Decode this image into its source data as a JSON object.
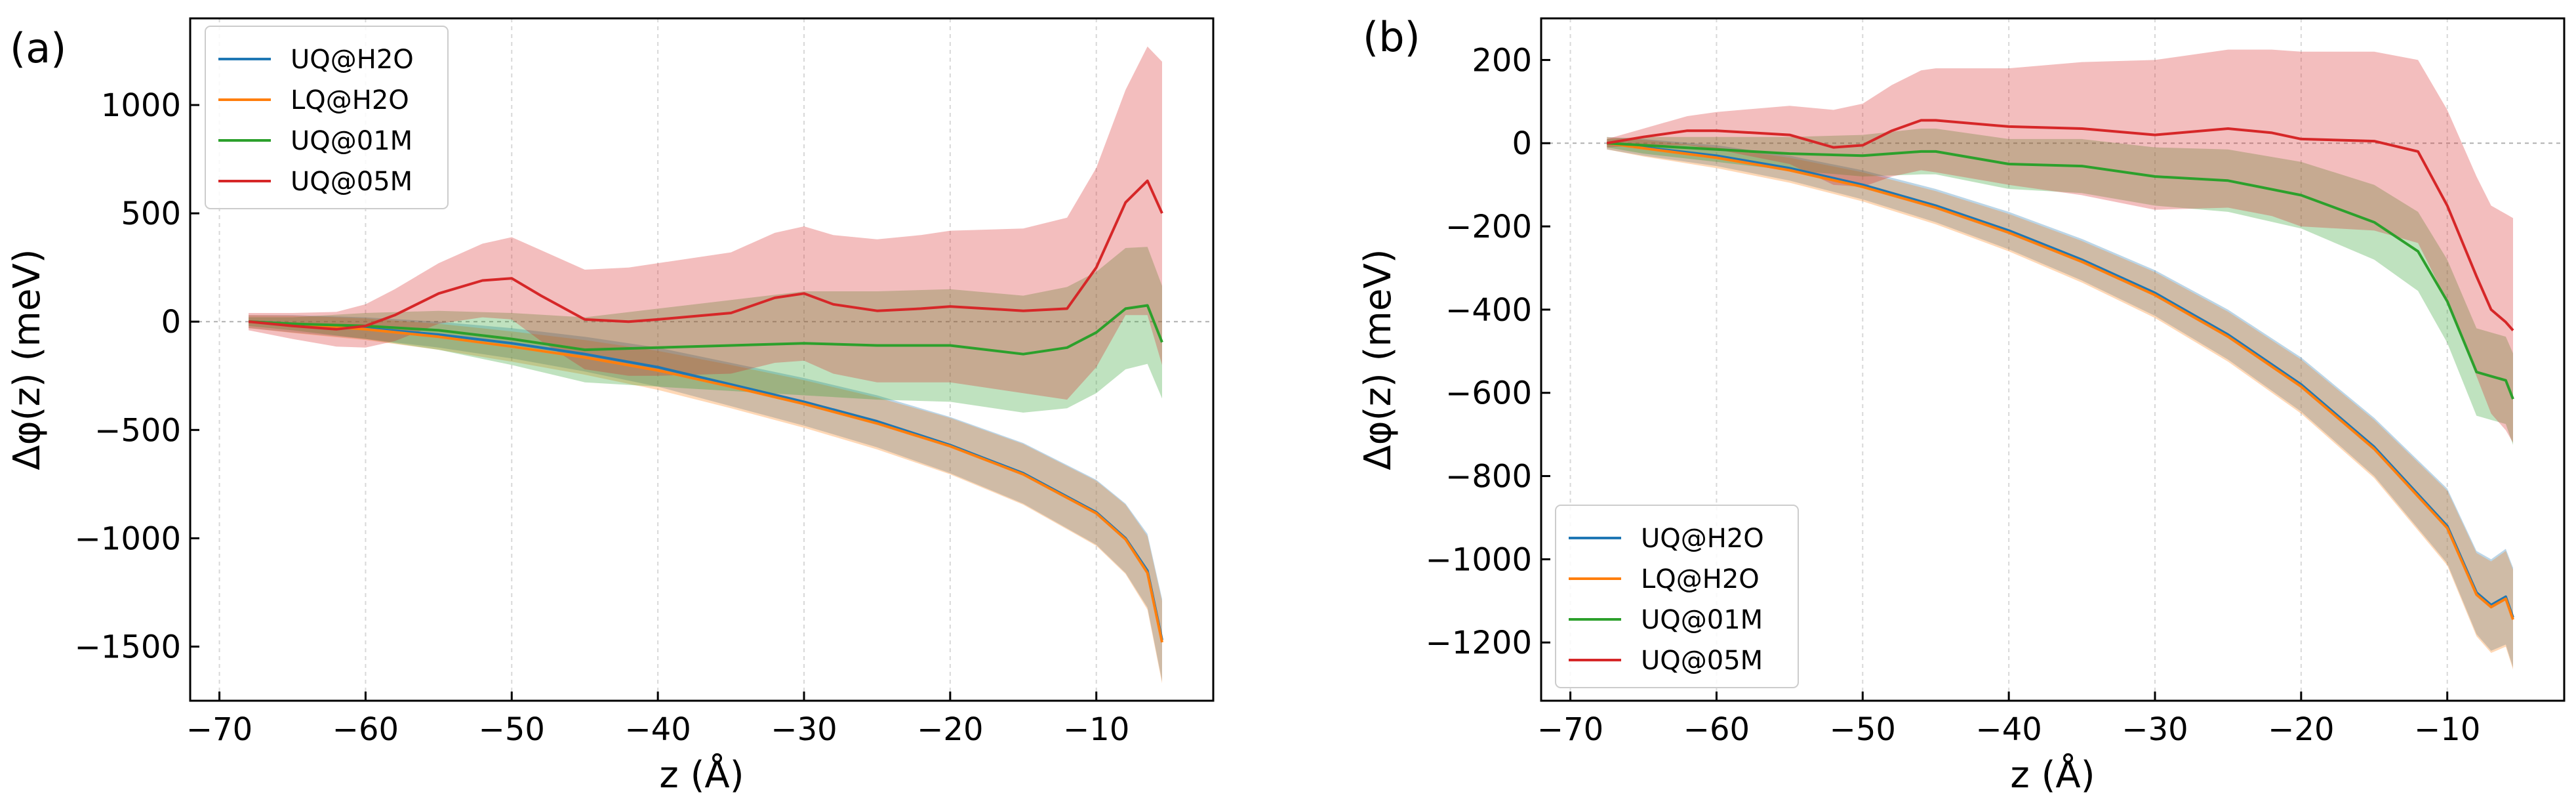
{
  "colors": {
    "UQ@H2O": "#1f77b4",
    "LQ@H2O": "#ff7f0e",
    "UQ@01M": "#2ca02c",
    "UQ@05M": "#d62728",
    "zero_line": "#b0b0b0",
    "grid": "#d8d8d8"
  },
  "chart_data": [
    {
      "type": "line",
      "panel_label": "(a)",
      "xlabel": "z (Å)",
      "ylabel": "Δφ(z) (meV)",
      "xlim": [
        -72,
        -2
      ],
      "ylim": [
        -1750,
        1400
      ],
      "xticks": [
        -70,
        -60,
        -50,
        -40,
        -30,
        -20,
        -10
      ],
      "yticks": [
        -1500,
        -1000,
        -500,
        0,
        500,
        1000
      ],
      "xtick_labels": [
        "−70",
        "−60",
        "−50",
        "−40",
        "−30",
        "−20",
        "−10"
      ],
      "ytick_labels": [
        "−1500",
        "−1000",
        "−500",
        "0",
        "500",
        "1000"
      ],
      "legend": [
        "UQ@H2O",
        "LQ@H2O",
        "UQ@01M",
        "UQ@05M"
      ],
      "legend_position": "upper-left",
      "series": [
        {
          "name": "UQ@H2O",
          "x": [
            -68,
            -65,
            -60,
            -55,
            -50,
            -45,
            -40,
            -35,
            -30,
            -25,
            -20,
            -15,
            -10,
            -8,
            -6.5,
            -5.5
          ],
          "values": [
            0,
            -10,
            -30,
            -60,
            -100,
            -150,
            -210,
            -290,
            -370,
            -460,
            -570,
            -700,
            -880,
            -1000,
            -1150,
            -1470
          ],
          "band": [
            30,
            40,
            50,
            60,
            70,
            80,
            90,
            100,
            110,
            120,
            130,
            140,
            150,
            160,
            170,
            190
          ]
        },
        {
          "name": "LQ@H2O",
          "x": [
            -68,
            -65,
            -60,
            -55,
            -50,
            -45,
            -40,
            -35,
            -30,
            -25,
            -20,
            -15,
            -10,
            -8,
            -6.5,
            -5.5
          ],
          "values": [
            0,
            -12,
            -35,
            -70,
            -115,
            -165,
            -225,
            -300,
            -380,
            -470,
            -575,
            -705,
            -885,
            -1005,
            -1160,
            -1480
          ],
          "band": [
            30,
            40,
            50,
            60,
            70,
            80,
            90,
            100,
            110,
            120,
            130,
            140,
            150,
            160,
            170,
            190
          ]
        },
        {
          "name": "UQ@01M",
          "x": [
            -68,
            -65,
            -60,
            -55,
            -50,
            -45,
            -40,
            -35,
            -30,
            -25,
            -20,
            -15,
            -12,
            -10,
            -8,
            -6.5,
            -5.5
          ],
          "values": [
            0,
            -10,
            -20,
            -40,
            -80,
            -130,
            -120,
            -110,
            -100,
            -110,
            -110,
            -150,
            -120,
            -50,
            60,
            75,
            -95
          ],
          "band": [
            20,
            30,
            60,
            90,
            120,
            150,
            180,
            210,
            240,
            250,
            260,
            270,
            280,
            280,
            280,
            270,
            260
          ]
        },
        {
          "name": "UQ@05M",
          "x": [
            -68,
            -65,
            -62,
            -60,
            -58,
            -55,
            -52,
            -50,
            -48,
            -45,
            -42,
            -40,
            -35,
            -32,
            -30,
            -28,
            -25,
            -22,
            -20,
            -15,
            -12,
            -10,
            -8,
            -6.5,
            -5.5
          ],
          "values": [
            0,
            -20,
            -35,
            -20,
            30,
            130,
            190,
            200,
            120,
            10,
            0,
            10,
            40,
            110,
            130,
            80,
            50,
            60,
            70,
            50,
            60,
            250,
            550,
            650,
            500
          ],
          "band": [
            40,
            60,
            80,
            100,
            120,
            140,
            170,
            190,
            210,
            230,
            250,
            260,
            280,
            300,
            310,
            320,
            330,
            340,
            350,
            380,
            420,
            460,
            520,
            620,
            700
          ]
        }
      ]
    },
    {
      "type": "line",
      "panel_label": "(b)",
      "xlabel": "z (Å)",
      "ylabel": "Δφ(z) (meV)",
      "xlim": [
        -72,
        -2
      ],
      "ylim": [
        -1340,
        300
      ],
      "xticks": [
        -70,
        -60,
        -50,
        -40,
        -30,
        -20,
        -10
      ],
      "yticks": [
        -1200,
        -1000,
        -800,
        -600,
        -400,
        -200,
        0,
        200
      ],
      "xtick_labels": [
        "−70",
        "−60",
        "−50",
        "−40",
        "−30",
        "−20",
        "−10"
      ],
      "ytick_labels": [
        "−1200",
        "−1000",
        "−800",
        "−600",
        "−400",
        "−200",
        "0",
        "200"
      ],
      "legend": [
        "UQ@H2O",
        "LQ@H2O",
        "UQ@01M",
        "UQ@05M"
      ],
      "legend_position": "lower-left",
      "series": [
        {
          "name": "UQ@H2O",
          "x": [
            -67.5,
            -65,
            -60,
            -55,
            -50,
            -45,
            -40,
            -35,
            -30,
            -25,
            -20,
            -15,
            -10,
            -8,
            -7,
            -6,
            -5.5
          ],
          "values": [
            0,
            -10,
            -30,
            -60,
            -100,
            -150,
            -210,
            -280,
            -360,
            -460,
            -580,
            -730,
            -920,
            -1080,
            -1110,
            -1090,
            -1140
          ],
          "band": [
            15,
            20,
            25,
            30,
            35,
            40,
            45,
            50,
            55,
            60,
            65,
            70,
            90,
            100,
            110,
            115,
            120
          ]
        },
        {
          "name": "LQ@H2O",
          "x": [
            -67.5,
            -65,
            -60,
            -55,
            -50,
            -45,
            -40,
            -35,
            -30,
            -25,
            -20,
            -15,
            -10,
            -8,
            -7,
            -6,
            -5.5
          ],
          "values": [
            0,
            -12,
            -35,
            -65,
            -105,
            -155,
            -215,
            -285,
            -365,
            -465,
            -585,
            -735,
            -925,
            -1085,
            -1115,
            -1095,
            -1145
          ],
          "band": [
            15,
            20,
            25,
            30,
            35,
            40,
            45,
            50,
            55,
            60,
            65,
            70,
            90,
            100,
            110,
            115,
            120
          ]
        },
        {
          "name": "UQ@01M",
          "x": [
            -67.5,
            -65,
            -60,
            -55,
            -50,
            -46,
            -45,
            -40,
            -35,
            -30,
            -25,
            -20,
            -15,
            -12,
            -10,
            -8,
            -7,
            -6,
            -5.5
          ],
          "values": [
            0,
            -5,
            -15,
            -25,
            -30,
            -20,
            -20,
            -50,
            -55,
            -80,
            -90,
            -125,
            -190,
            -260,
            -380,
            -550,
            -560,
            -570,
            -615
          ],
          "band": [
            10,
            20,
            30,
            40,
            50,
            55,
            55,
            60,
            65,
            70,
            75,
            80,
            90,
            95,
            100,
            105,
            105,
            105,
            110
          ]
        },
        {
          "name": "UQ@05M",
          "x": [
            -67.5,
            -65,
            -62,
            -60,
            -55,
            -52,
            -50,
            -48,
            -46,
            -45,
            -40,
            -35,
            -30,
            -25,
            -22,
            -20,
            -15,
            -12,
            -10,
            -8,
            -7,
            -6,
            -5.5
          ],
          "values": [
            0,
            15,
            30,
            30,
            20,
            -10,
            -5,
            30,
            55,
            55,
            40,
            35,
            20,
            35,
            25,
            10,
            5,
            -20,
            -150,
            -320,
            -400,
            -430,
            -450
          ],
          "band": [
            10,
            20,
            35,
            45,
            70,
            90,
            100,
            110,
            120,
            125,
            140,
            160,
            180,
            190,
            200,
            210,
            215,
            220,
            230,
            240,
            250,
            260,
            270
          ]
        }
      ]
    }
  ]
}
